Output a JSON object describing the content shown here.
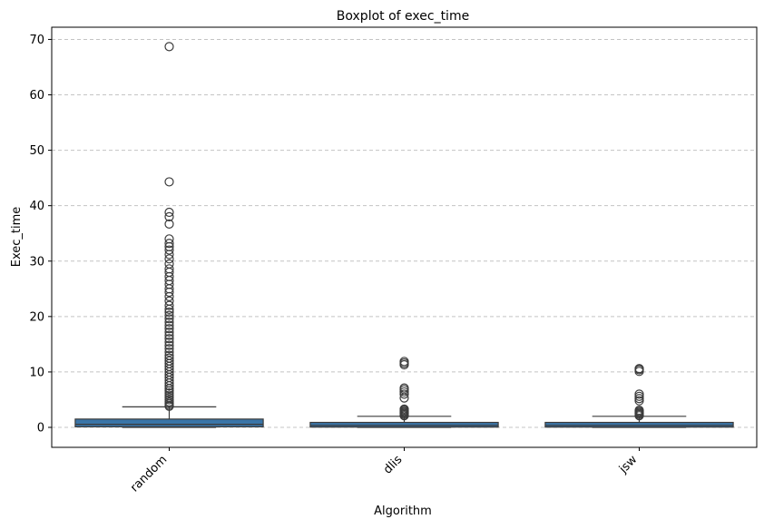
{
  "chart_data": {
    "type": "box",
    "title": "Boxplot of exec_time",
    "xlabel": "Algorithm",
    "ylabel": "Exec_time",
    "ylim": [
      -3.6,
      72.2
    ],
    "yticks": [
      0,
      10,
      20,
      30,
      40,
      50,
      60,
      70
    ],
    "grid": "y-dashed",
    "categories": [
      "random",
      "dlis",
      "jsw"
    ],
    "box_color": "#3a75a8",
    "boxes": [
      {
        "category": "random",
        "whislo": 0.0,
        "q1": 0.1,
        "median": 0.55,
        "q3": 1.5,
        "whishi": 3.7,
        "outliers": [
          3.8,
          4.0,
          4.3,
          4.6,
          5.0,
          5.4,
          5.8,
          6.2,
          6.6,
          7.0,
          7.5,
          8.0,
          8.5,
          9.0,
          9.5,
          10.0,
          10.5,
          11.0,
          11.5,
          12.0,
          12.5,
          13.0,
          13.6,
          14.2,
          14.8,
          15.4,
          16.0,
          16.6,
          17.2,
          17.8,
          18.4,
          19.0,
          19.6,
          20.2,
          20.8,
          21.3,
          22.0,
          22.8,
          23.6,
          24.4,
          25.0,
          25.8,
          26.5,
          27.2,
          28.0,
          28.6,
          29.5,
          30.4,
          31.2,
          32.0,
          32.6,
          33.2,
          34.0,
          36.7,
          38.0,
          38.8,
          44.3,
          68.7
        ]
      },
      {
        "category": "dlis",
        "whislo": 0.0,
        "q1": 0.05,
        "median": 0.35,
        "q3": 0.9,
        "whishi": 2.0,
        "outliers": [
          2.1,
          2.3,
          2.5,
          2.7,
          2.9,
          3.1,
          3.3,
          5.3,
          6.0,
          6.4,
          6.8,
          7.1,
          11.3,
          11.6,
          11.9
        ]
      },
      {
        "category": "jsw",
        "whislo": 0.0,
        "q1": 0.05,
        "median": 0.35,
        "q3": 0.9,
        "whishi": 2.0,
        "outliers": [
          2.1,
          2.3,
          2.5,
          2.7,
          2.9,
          3.1,
          4.8,
          5.2,
          5.6,
          6.0,
          10.1,
          10.4,
          10.6
        ]
      }
    ]
  }
}
